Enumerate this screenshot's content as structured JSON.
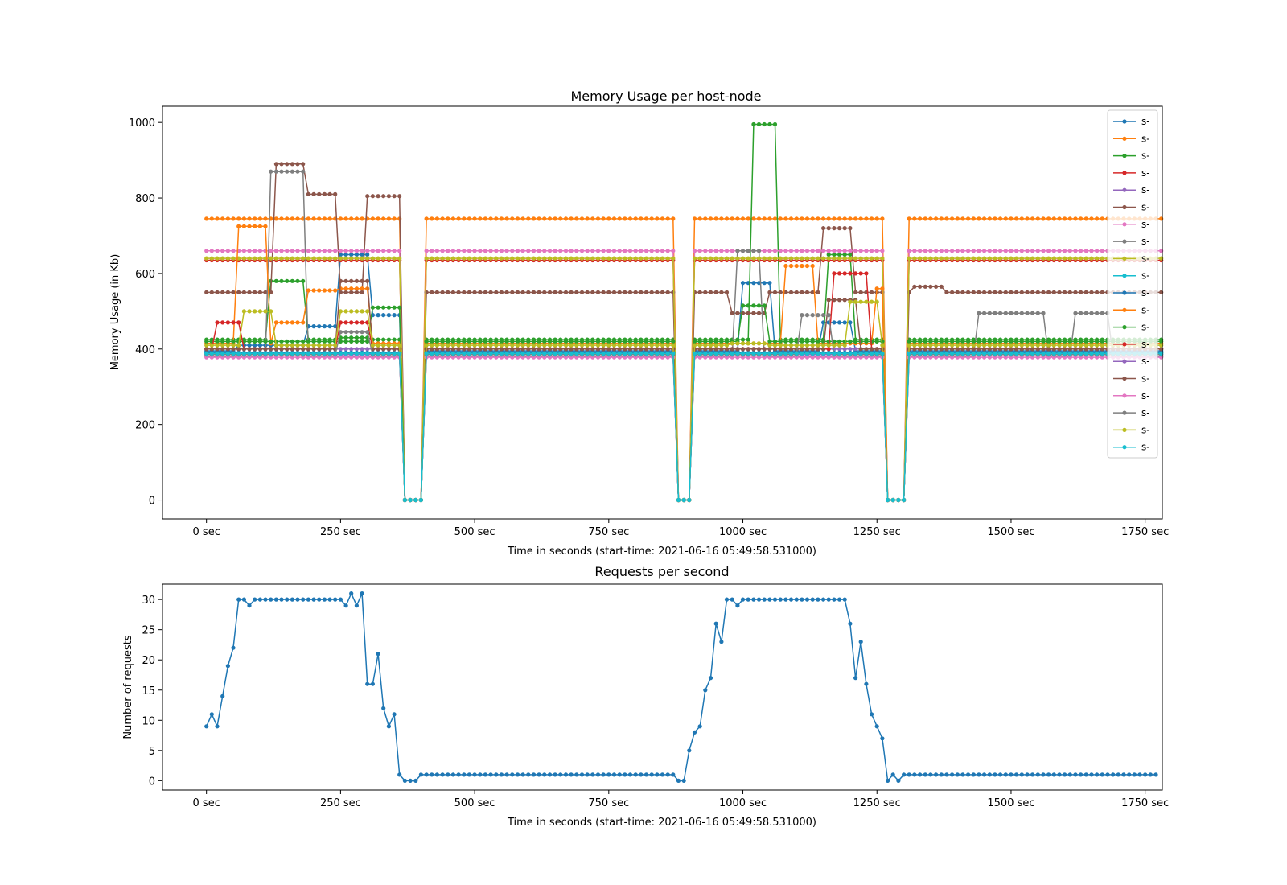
{
  "chart_data": [
    {
      "type": "line",
      "title": "Memory Usage per host-node",
      "xlabel": "Time in seconds (start-time: 2021-06-16 05:49:58.531000)",
      "ylabel": "Memory Usage (in Kb)",
      "xlim": [
        -82,
        1782
      ],
      "ylim": [
        -50,
        1043
      ],
      "xticks": [
        0,
        250,
        500,
        750,
        1000,
        1250,
        1500,
        1750
      ],
      "xtick_labels": [
        "0 sec",
        "250 sec",
        "500 sec",
        "750 sec",
        "1000 sec",
        "1250 sec",
        "1500 sec",
        "1750 sec"
      ],
      "yticks": [
        0,
        200,
        400,
        600,
        800,
        1000
      ],
      "grid": false,
      "legend_position": "top-right",
      "sample_step": 10,
      "x_max": 1780,
      "dips": [
        [
          370,
          400
        ],
        [
          880,
          900
        ],
        [
          1270,
          1280
        ],
        [
          1290,
          1300
        ]
      ],
      "series": [
        {
          "name": "s-",
          "color": "#1f77b4",
          "base": 395,
          "plateaus": [
            [
              60,
              120,
              410
            ],
            [
              130,
              180,
              410
            ],
            [
              190,
              240,
              460
            ],
            [
              250,
              300,
              650
            ],
            [
              310,
              360,
              490
            ],
            [
              1000,
              1050,
              575
            ],
            [
              1150,
              1200,
              470
            ]
          ]
        },
        {
          "name": "s-",
          "color": "#ff7f0e",
          "base": 745,
          "plateaus": []
        },
        {
          "name": "s-",
          "color": "#2ca02c",
          "base": 425,
          "plateaus": [
            [
              120,
              180,
              580
            ],
            [
              250,
              300,
              430
            ],
            [
              1020,
              1060,
              995
            ],
            [
              1160,
              1200,
              650
            ]
          ]
        },
        {
          "name": "s-",
          "color": "#d62728",
          "base": 635,
          "plateaus": []
        },
        {
          "name": "s-",
          "color": "#9467bd",
          "base": 400,
          "plateaus": []
        },
        {
          "name": "s-",
          "color": "#8c564b",
          "base": 550,
          "plateaus": [
            [
              130,
              180,
              890
            ],
            [
              190,
              240,
              810
            ],
            [
              300,
              360,
              805
            ],
            [
              980,
              1040,
              495
            ],
            [
              1150,
              1200,
              720
            ],
            [
              1320,
              1370,
              565
            ]
          ]
        },
        {
          "name": "s-",
          "color": "#e377c2",
          "base": 660,
          "plateaus": []
        },
        {
          "name": "s-",
          "color": "#7f7f7f",
          "base": 380,
          "plateaus": [
            [
              120,
              180,
              870
            ],
            [
              990,
              1030,
              660
            ],
            [
              1440,
              1560,
              495
            ],
            [
              1620,
              1680,
              495
            ]
          ]
        },
        {
          "name": "s-",
          "color": "#bcbd22",
          "base": 640,
          "plateaus": []
        },
        {
          "name": "s-",
          "color": "#17becf",
          "base": 390,
          "plateaus": []
        },
        {
          "name": "s-",
          "color": "#1f77b4",
          "base": 390,
          "plateaus": []
        },
        {
          "name": "s-",
          "color": "#ff7f0e",
          "base": 415,
          "plateaus": [
            [
              60,
              110,
              725
            ],
            [
              130,
              180,
              470
            ],
            [
              190,
              240,
              555
            ],
            [
              250,
              300,
              560
            ],
            [
              1080,
              1130,
              620
            ],
            [
              1250,
              1290,
              560
            ]
          ]
        },
        {
          "name": "s-",
          "color": "#2ca02c",
          "base": 420,
          "plateaus": [
            [
              310,
              360,
              510
            ],
            [
              1000,
              1040,
              515
            ]
          ]
        },
        {
          "name": "s-",
          "color": "#d62728",
          "base": 400,
          "plateaus": [
            [
              20,
              60,
              470
            ],
            [
              250,
              300,
              470
            ],
            [
              1170,
              1230,
              600
            ]
          ]
        },
        {
          "name": "s-",
          "color": "#9467bd",
          "base": 385,
          "plateaus": []
        },
        {
          "name": "s-",
          "color": "#8c564b",
          "base": 400,
          "plateaus": [
            [
              250,
              300,
              580
            ],
            [
              1160,
              1210,
              530
            ]
          ]
        },
        {
          "name": "s-",
          "color": "#e377c2",
          "base": 378,
          "plateaus": []
        },
        {
          "name": "s-",
          "color": "#7f7f7f",
          "base": 385,
          "plateaus": [
            [
              250,
              300,
              445
            ],
            [
              1110,
              1160,
              490
            ]
          ]
        },
        {
          "name": "s-",
          "color": "#bcbd22",
          "base": 410,
          "plateaus": [
            [
              70,
              120,
              500
            ],
            [
              250,
              300,
              500
            ],
            [
              980,
              1040,
              415
            ],
            [
              1200,
              1250,
              525
            ]
          ]
        },
        {
          "name": "s-",
          "color": "#17becf",
          "base": 388,
          "plateaus": []
        }
      ]
    },
    {
      "type": "line",
      "title": "Requests per second",
      "xlabel": "Time in seconds (start-time: 2021-06-16 05:49:58.531000)",
      "ylabel": "Number of requests",
      "xlim": [
        -82,
        1782
      ],
      "ylim": [
        -1.55,
        32.55
      ],
      "xticks": [
        0,
        250,
        500,
        750,
        1000,
        1250,
        1500,
        1750
      ],
      "xtick_labels": [
        "0 sec",
        "250 sec",
        "500 sec",
        "750 sec",
        "1000 sec",
        "1250 sec",
        "1500 sec",
        "1750 sec"
      ],
      "yticks": [
        0,
        5,
        10,
        15,
        20,
        25,
        30
      ],
      "grid": false,
      "series": [
        {
          "color": "#1f77b4",
          "x": [
            0,
            10,
            20,
            30,
            40,
            50,
            60,
            70,
            80,
            90,
            100,
            110,
            120,
            130,
            140,
            150,
            160,
            170,
            180,
            190,
            200,
            210,
            220,
            230,
            240,
            250,
            260,
            270,
            280,
            290,
            300,
            310,
            320,
            330,
            340,
            350,
            360,
            370,
            380,
            390,
            400,
            410,
            420,
            430,
            440,
            450,
            460,
            470,
            480,
            490,
            500,
            510,
            520,
            530,
            540,
            550,
            560,
            570,
            580,
            590,
            600,
            610,
            620,
            630,
            640,
            650,
            660,
            670,
            680,
            690,
            700,
            710,
            720,
            730,
            740,
            750,
            760,
            770,
            780,
            790,
            800,
            810,
            820,
            830,
            840,
            850,
            860,
            870,
            880,
            890,
            900,
            910,
            920,
            930,
            940,
            950,
            960,
            970,
            980,
            990,
            1000,
            1010,
            1020,
            1030,
            1040,
            1050,
            1060,
            1070,
            1080,
            1090,
            1100,
            1110,
            1120,
            1130,
            1140,
            1150,
            1160,
            1170,
            1180,
            1190,
            1200,
            1210,
            1220,
            1230,
            1240,
            1250,
            1260,
            1270,
            1280,
            1290,
            1300,
            1310,
            1320,
            1330,
            1340,
            1350,
            1360,
            1370,
            1380,
            1390,
            1400,
            1410,
            1420,
            1430,
            1440,
            1450,
            1460,
            1470,
            1480,
            1490,
            1500,
            1510,
            1520,
            1530,
            1540,
            1550,
            1560,
            1570,
            1580,
            1590,
            1600,
            1610,
            1620,
            1630,
            1640,
            1650,
            1660,
            1670,
            1680,
            1690,
            1700,
            1710,
            1720,
            1730,
            1740,
            1750,
            1760,
            1770
          ],
          "values": [
            9,
            11,
            9,
            14,
            19,
            22,
            30,
            30,
            29,
            30,
            30,
            30,
            30,
            30,
            30,
            30,
            30,
            30,
            30,
            30,
            30,
            30,
            30,
            30,
            30,
            30,
            29,
            31,
            29,
            31,
            16,
            16,
            21,
            12,
            9,
            11,
            1,
            0,
            0,
            0,
            1,
            1,
            1,
            1,
            1,
            1,
            1,
            1,
            1,
            1,
            1,
            1,
            1,
            1,
            1,
            1,
            1,
            1,
            1,
            1,
            1,
            1,
            1,
            1,
            1,
            1,
            1,
            1,
            1,
            1,
            1,
            1,
            1,
            1,
            1,
            1,
            1,
            1,
            1,
            1,
            1,
            1,
            1,
            1,
            1,
            1,
            1,
            1,
            0,
            0,
            5,
            8,
            9,
            15,
            17,
            26,
            23,
            30,
            30,
            29,
            30,
            30,
            30,
            30,
            30,
            30,
            30,
            30,
            30,
            30,
            30,
            30,
            30,
            30,
            30,
            30,
            30,
            30,
            30,
            30,
            26,
            17,
            23,
            16,
            11,
            9,
            7,
            0,
            1,
            0,
            1,
            1,
            1,
            1,
            1,
            1,
            1,
            1,
            1,
            1,
            1,
            1,
            1,
            1,
            1,
            1,
            1,
            1,
            1,
            1,
            1,
            1,
            1,
            1,
            1,
            1,
            1,
            1,
            1,
            1,
            1,
            1,
            1,
            1,
            1,
            1,
            1,
            1,
            1,
            1,
            1,
            1,
            1,
            1,
            1,
            1,
            1,
            1
          ]
        }
      ]
    }
  ]
}
